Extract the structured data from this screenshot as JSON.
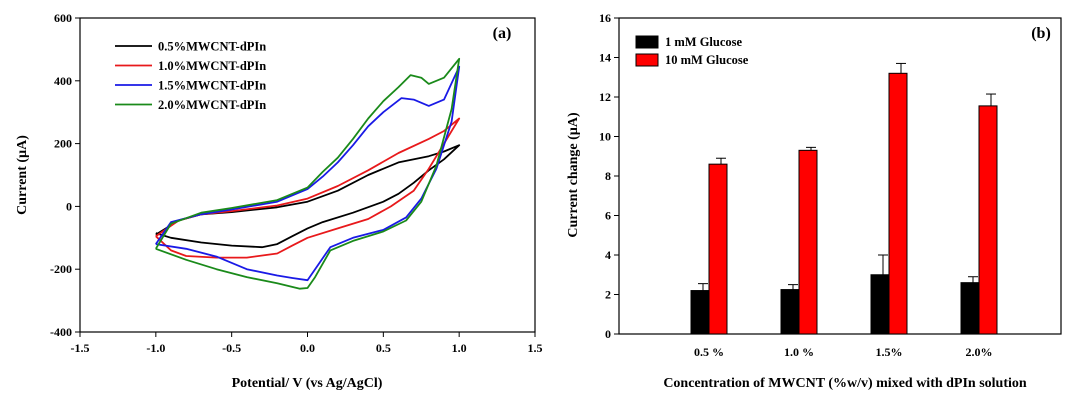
{
  "chart_data": [
    {
      "type": "line",
      "panel_label": "(a)",
      "xlabel": "Potential/ V (vs Ag/AgCl)",
      "ylabel": "Current (µA)",
      "xlim": [
        -1.5,
        1.5
      ],
      "ylim": [
        -400,
        600
      ],
      "xticks": [
        "-1.5",
        "-1.0",
        "-0.5",
        "0.0",
        "0.5",
        "1.0",
        "1.5"
      ],
      "yticks": [
        "-400",
        "-200",
        "0",
        "200",
        "400",
        "600"
      ],
      "legend_position": "top-left",
      "grid": false,
      "series": [
        {
          "name": "0.5%MWCNT-dPIn",
          "color": "#000000",
          "points": [
            [
              -1.0,
              -85
            ],
            [
              -0.9,
              -100
            ],
            [
              -0.7,
              -115
            ],
            [
              -0.5,
              -125
            ],
            [
              -0.3,
              -130
            ],
            [
              -0.2,
              -120
            ],
            [
              -0.1,
              -95
            ],
            [
              0.0,
              -70
            ],
            [
              0.1,
              -50
            ],
            [
              0.3,
              -20
            ],
            [
              0.5,
              15
            ],
            [
              0.6,
              40
            ],
            [
              0.7,
              75
            ],
            [
              0.8,
              115
            ],
            [
              0.9,
              150
            ],
            [
              1.0,
              195
            ],
            [
              0.9,
              175
            ],
            [
              0.8,
              160
            ],
            [
              0.6,
              140
            ],
            [
              0.4,
              100
            ],
            [
              0.2,
              50
            ],
            [
              0.0,
              15
            ],
            [
              -0.2,
              -3
            ],
            [
              -0.5,
              -18
            ],
            [
              -0.7,
              -25
            ],
            [
              -0.85,
              -45
            ],
            [
              -1.0,
              -90
            ]
          ]
        },
        {
          "name": "1.0%MWCNT-dPIn",
          "color": "#e8191b",
          "points": [
            [
              -1.0,
              -95
            ],
            [
              -0.9,
              -140
            ],
            [
              -0.8,
              -158
            ],
            [
              -0.6,
              -163
            ],
            [
              -0.4,
              -163
            ],
            [
              -0.2,
              -150
            ],
            [
              -0.1,
              -125
            ],
            [
              0.0,
              -100
            ],
            [
              0.2,
              -70
            ],
            [
              0.4,
              -40
            ],
            [
              0.55,
              0
            ],
            [
              0.7,
              50
            ],
            [
              0.8,
              120
            ],
            [
              0.9,
              200
            ],
            [
              1.0,
              280
            ],
            [
              0.9,
              240
            ],
            [
              0.8,
              215
            ],
            [
              0.6,
              170
            ],
            [
              0.4,
              115
            ],
            [
              0.2,
              65
            ],
            [
              0.0,
              25
            ],
            [
              -0.2,
              3
            ],
            [
              -0.5,
              -15
            ],
            [
              -0.7,
              -25
            ],
            [
              -0.85,
              -45
            ],
            [
              -1.0,
              -95
            ]
          ]
        },
        {
          "name": "1.5%MWCNT-dPIn",
          "color": "#1a1ae6",
          "points": [
            [
              -1.0,
              -120
            ],
            [
              -0.8,
              -135
            ],
            [
              -0.6,
              -160
            ],
            [
              -0.4,
              -200
            ],
            [
              -0.2,
              -220
            ],
            [
              -0.1,
              -228
            ],
            [
              0.0,
              -235
            ],
            [
              0.05,
              -200
            ],
            [
              0.15,
              -130
            ],
            [
              0.3,
              -100
            ],
            [
              0.5,
              -75
            ],
            [
              0.65,
              -35
            ],
            [
              0.75,
              25
            ],
            [
              0.85,
              120
            ],
            [
              0.95,
              270
            ],
            [
              1.0,
              445
            ],
            [
              0.9,
              340
            ],
            [
              0.8,
              320
            ],
            [
              0.7,
              340
            ],
            [
              0.62,
              345
            ],
            [
              0.5,
              300
            ],
            [
              0.4,
              255
            ],
            [
              0.3,
              195
            ],
            [
              0.2,
              140
            ],
            [
              0.1,
              95
            ],
            [
              0.0,
              55
            ],
            [
              -0.2,
              15
            ],
            [
              -0.5,
              -10
            ],
            [
              -0.7,
              -25
            ],
            [
              -0.9,
              -50
            ],
            [
              -1.0,
              -120
            ]
          ]
        },
        {
          "name": "2.0%MWCNT-dPIn",
          "color": "#1a8a1a",
          "points": [
            [
              -1.0,
              -135
            ],
            [
              -0.8,
              -170
            ],
            [
              -0.6,
              -200
            ],
            [
              -0.4,
              -225
            ],
            [
              -0.2,
              -245
            ],
            [
              -0.05,
              -262
            ],
            [
              0.0,
              -260
            ],
            [
              0.05,
              -225
            ],
            [
              0.15,
              -140
            ],
            [
              0.3,
              -110
            ],
            [
              0.5,
              -80
            ],
            [
              0.65,
              -45
            ],
            [
              0.75,
              15
            ],
            [
              0.85,
              130
            ],
            [
              0.95,
              310
            ],
            [
              1.0,
              470
            ],
            [
              0.9,
              410
            ],
            [
              0.8,
              390
            ],
            [
              0.75,
              410
            ],
            [
              0.68,
              418
            ],
            [
              0.6,
              380
            ],
            [
              0.5,
              335
            ],
            [
              0.4,
              280
            ],
            [
              0.3,
              215
            ],
            [
              0.2,
              155
            ],
            [
              0.1,
              110
            ],
            [
              0.0,
              60
            ],
            [
              -0.2,
              20
            ],
            [
              -0.5,
              -5
            ],
            [
              -0.7,
              -20
            ],
            [
              -0.9,
              -55
            ],
            [
              -1.0,
              -135
            ]
          ]
        }
      ]
    },
    {
      "type": "bar",
      "panel_label": "(b)",
      "xlabel": "Concentration of MWCNT (%w/v) mixed with dPIn solution",
      "ylabel": "Current change (µA)",
      "ylim": [
        0,
        16
      ],
      "yticks": [
        "0",
        "2",
        "4",
        "6",
        "8",
        "10",
        "12",
        "14",
        "16"
      ],
      "categories": [
        "0.5 %",
        "1.0 %",
        "1.5%",
        "2.0%"
      ],
      "legend_position": "top-left",
      "grid": false,
      "series": [
        {
          "name": "1 mM Glucose",
          "color": "#000000",
          "values": [
            2.2,
            2.25,
            3.0,
            2.6
          ],
          "errors": [
            0.35,
            0.25,
            1.0,
            0.3
          ]
        },
        {
          "name": "10 mM Glucose",
          "color": "#ff0000",
          "values": [
            8.6,
            9.3,
            13.2,
            11.55
          ],
          "errors": [
            0.3,
            0.15,
            0.5,
            0.6
          ]
        }
      ]
    }
  ]
}
